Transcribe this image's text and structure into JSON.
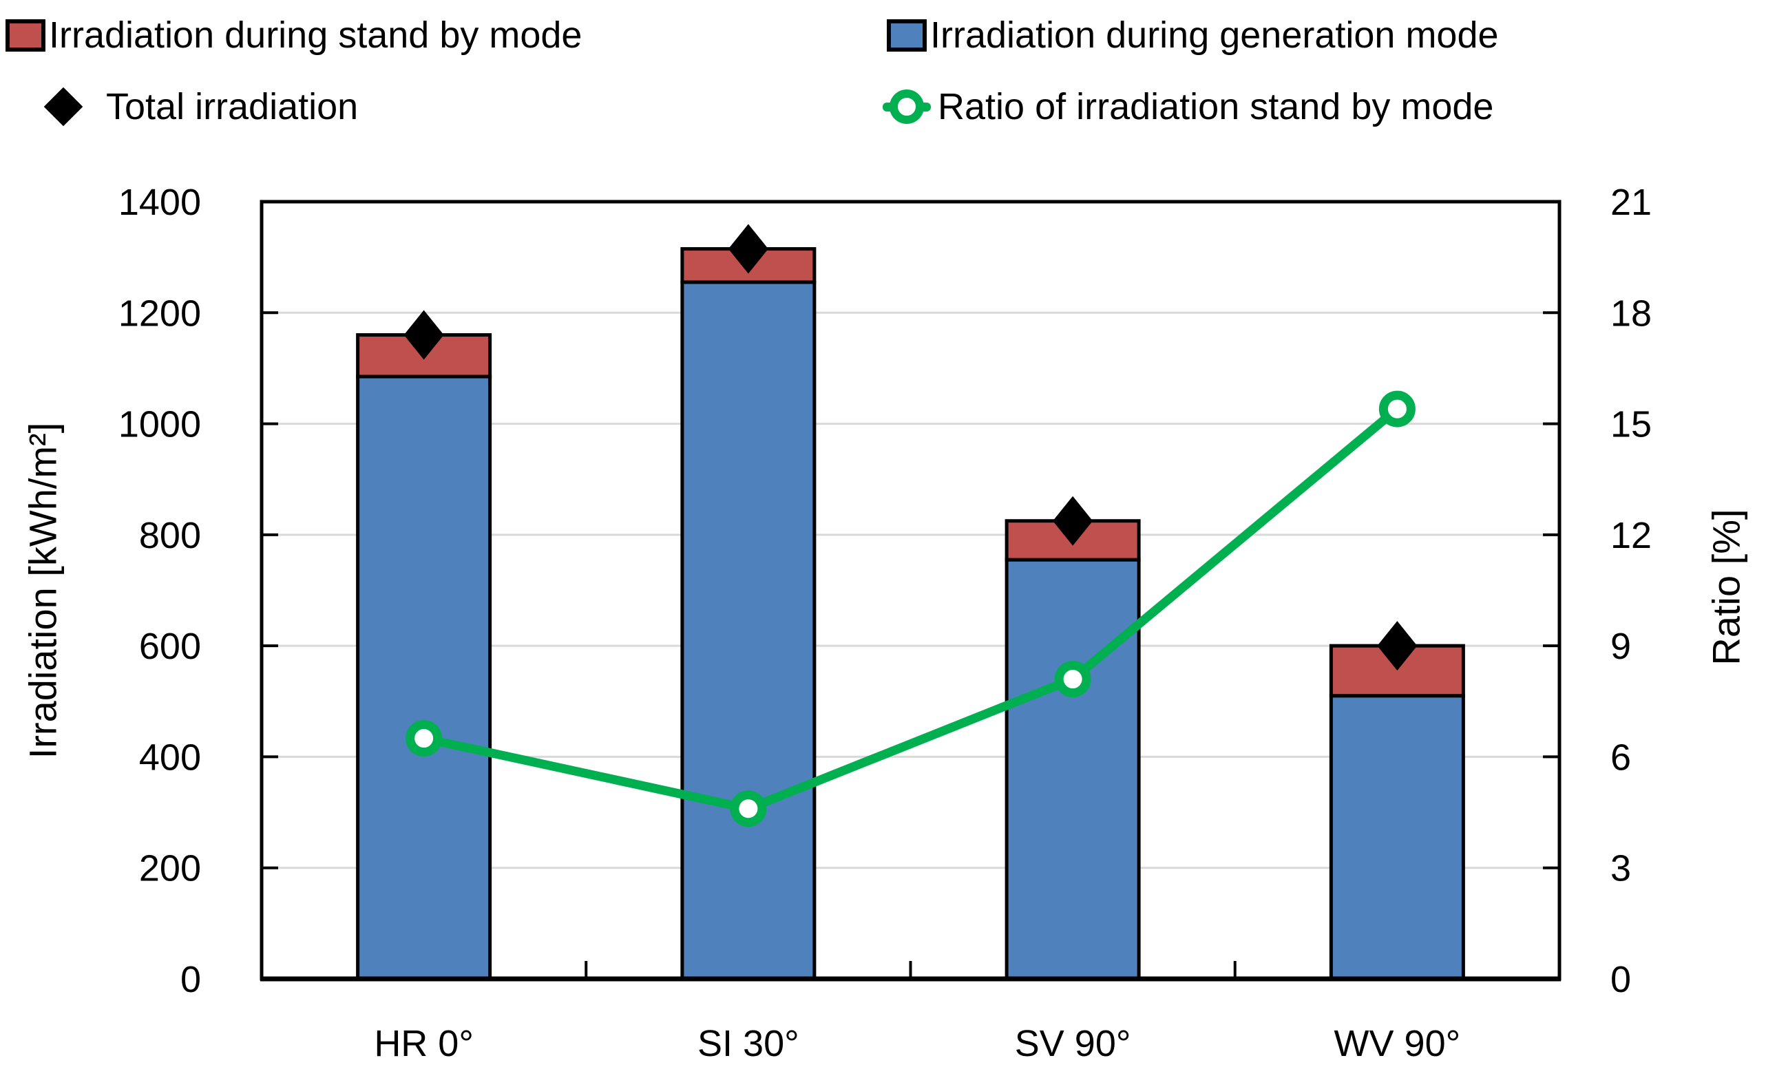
{
  "chart_data": {
    "type": "bar",
    "subtype": "stacked-bars-with-line-on-secondary-axis",
    "categories": [
      "HR 0°",
      "SI 30°",
      "SV 90°",
      "WV 90°"
    ],
    "series": [
      {
        "name": "Irradiation during generation mode",
        "type": "bar",
        "stack": "irradiation",
        "axis": "left",
        "color": "#4F81BD",
        "values": [
          1085,
          1255,
          755,
          510
        ]
      },
      {
        "name": "Irradiation during stand by mode",
        "type": "bar",
        "stack": "irradiation",
        "axis": "left",
        "color": "#C0504D",
        "values": [
          75,
          60,
          70,
          90
        ]
      },
      {
        "name": "Total irradiation",
        "type": "scatter",
        "marker": "diamond",
        "axis": "left",
        "color": "#000000",
        "values": [
          1160,
          1315,
          825,
          600
        ]
      },
      {
        "name": "Ratio of irradiation stand by mode",
        "type": "line",
        "marker": "open-circle",
        "axis": "right",
        "color": "#00B050",
        "values": [
          6.5,
          4.6,
          8.1,
          15.4
        ]
      }
    ],
    "left_axis": {
      "title": "Irradiation [kWh/m²]",
      "min": 0,
      "max": 1400,
      "ticks": [
        0,
        200,
        400,
        600,
        800,
        1000,
        1200,
        1400
      ]
    },
    "right_axis": {
      "title": "Ratio [%]",
      "min": 0,
      "max": 21,
      "ticks": [
        0,
        3,
        6,
        9,
        12,
        15,
        18,
        21
      ]
    },
    "grid": true,
    "grid_color": "#D9D9D9",
    "axis_color": "#000000",
    "legend_position": "top"
  }
}
